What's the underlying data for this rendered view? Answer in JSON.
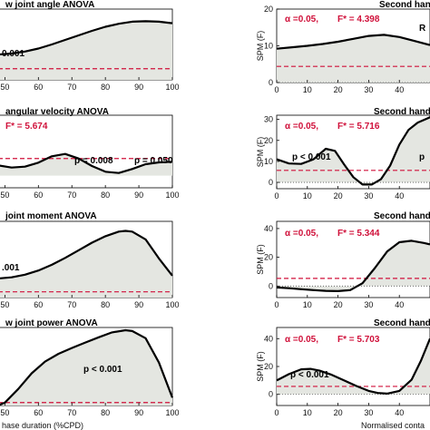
{
  "chart_data": [
    {
      "type": "line",
      "title": "w joint angle ANOVA",
      "x_ticks": [
        "50",
        "60",
        "70",
        "80",
        "90",
        "100"
      ],
      "xlim": [
        48,
        100
      ],
      "ylim": [
        0,
        14
      ],
      "threshold": 2.2,
      "x": [
        48,
        52,
        56,
        60,
        64,
        68,
        72,
        76,
        80,
        84,
        88,
        92,
        96,
        100
      ],
      "y": [
        5.0,
        5.2,
        5.6,
        6.2,
        7.0,
        7.9,
        8.8,
        9.7,
        10.5,
        11.1,
        11.5,
        11.6,
        11.5,
        11.2
      ],
      "annotations": [
        {
          "text": "0.001",
          "x": 50,
          "y": 6.8
        }
      ],
      "alpha_text": "",
      "fstar_text": ""
    },
    {
      "type": "line",
      "title": "angular velocity ANOVA",
      "x_ticks": [
        "50",
        "60",
        "70",
        "80",
        "90",
        "100"
      ],
      "xlim": [
        48,
        100
      ],
      "ylim": [
        -4,
        20
      ],
      "threshold": 5.674,
      "x": [
        48,
        52,
        56,
        60,
        64,
        68,
        72,
        76,
        80,
        84,
        88,
        92,
        96,
        100
      ],
      "y": [
        3.4,
        2.7,
        3.0,
        4.3,
        6.4,
        7.2,
        5.7,
        3.2,
        1.3,
        0.9,
        2.2,
        3.8,
        4.4,
        4.6
      ],
      "annotations": [
        {
          "text": "p = 0.008",
          "x": 68,
          "y": 13
        },
        {
          "text": "p = 0.050",
          "x": 90,
          "y": 13
        }
      ],
      "alpha_text": "",
      "fstar_text": "F* = 5.674"
    },
    {
      "type": "line",
      "title": "joint moment ANOVA",
      "x_ticks": [
        "50",
        "60",
        "70",
        "80",
        "90",
        "100"
      ],
      "xlim": [
        48,
        100
      ],
      "ylim": [
        0,
        40
      ],
      "threshold": 3.0,
      "x": [
        48,
        52,
        56,
        60,
        64,
        68,
        72,
        76,
        80,
        84,
        86,
        88,
        92,
        96,
        100
      ],
      "y": [
        10.0,
        10.6,
        12.0,
        14.2,
        17.2,
        20.8,
        24.8,
        28.8,
        32.2,
        34.6,
        35.0,
        34.6,
        30.5,
        20.5,
        11.5
      ],
      "annotations": [
        {
          "text": ".001",
          "x": 50,
          "y": 14
        }
      ],
      "alpha_text": "",
      "fstar_text": ""
    },
    {
      "type": "line",
      "title": "w joint power ANOVA",
      "x_ticks": [
        "50",
        "60",
        "70",
        "80",
        "90",
        "100"
      ],
      "xlim": [
        48,
        100
      ],
      "ylim": [
        0,
        40
      ],
      "threshold": 1.5,
      "x": [
        48,
        50,
        54,
        58,
        62,
        66,
        70,
        74,
        78,
        82,
        86,
        88,
        92,
        96,
        100
      ],
      "y": [
        0.0,
        1.5,
        8.5,
        16.5,
        22.5,
        26.5,
        29.5,
        32.3,
        35.0,
        37.5,
        38.6,
        38.2,
        34.5,
        22.0,
        4.0
      ],
      "annotations": [
        {
          "text": "p < 0.001",
          "x": 80,
          "y": 15
        }
      ],
      "alpha_text": "",
      "fstar_text": "",
      "xlabel": "hase duration (%CPD)"
    },
    {
      "type": "line",
      "title": "Second hand W",
      "x_ticks": [
        "0",
        "10",
        "20",
        "30",
        "40"
      ],
      "yticks": [
        "0",
        "10",
        "20"
      ],
      "ylabel": "SPM (F)",
      "xlim": [
        0,
        50
      ],
      "ylim": [
        0,
        20
      ],
      "threshold": 4.398,
      "x": [
        0,
        5,
        10,
        15,
        20,
        25,
        30,
        35,
        40,
        45,
        50
      ],
      "y": [
        9.2,
        9.6,
        10.0,
        10.5,
        11.1,
        11.9,
        12.7,
        13.0,
        12.4,
        11.3,
        10.2
      ],
      "annotations": [
        {
          "text": "R",
          "x": 48,
          "y": 16.5
        }
      ],
      "alpha_text": "α =0.05,",
      "fstar_text": "F* = 4.398"
    },
    {
      "type": "line",
      "title": "Second hand Wris",
      "x_ticks": [
        "0",
        "10",
        "20",
        "30",
        "40"
      ],
      "yticks": [
        "0",
        "10",
        "20",
        "30"
      ],
      "ylabel": "SPM (F)",
      "xlim": [
        0,
        50
      ],
      "ylim": [
        -3,
        32
      ],
      "threshold": 5.716,
      "x": [
        0,
        4,
        8,
        12,
        16,
        19,
        22,
        25,
        28,
        31,
        34,
        37,
        40,
        43,
        46,
        50
      ],
      "y": [
        11.0,
        9.0,
        8.8,
        11.0,
        16.0,
        15.0,
        8.5,
        2.5,
        -1.0,
        -1.0,
        1.5,
        8.0,
        18.0,
        25.0,
        28.5,
        31.0
      ],
      "annotations": [
        {
          "text": "p < 0.001",
          "x": 9,
          "y": 23
        },
        {
          "text": "p",
          "x": 47,
          "y": 17
        }
      ],
      "alpha_text": "α =0.05,",
      "fstar_text": "F* = 5.716"
    },
    {
      "type": "line",
      "title": "Second hand Wri",
      "x_ticks": [
        "0",
        "10",
        "20",
        "30",
        "40"
      ],
      "yticks": [
        "0",
        "20",
        "40"
      ],
      "ylabel": "SPM (F)",
      "xlim": [
        0,
        50
      ],
      "ylim": [
        -8,
        45
      ],
      "threshold": 5.344,
      "x": [
        0,
        4,
        8,
        12,
        16,
        20,
        24,
        28,
        32,
        36,
        40,
        44,
        48,
        50
      ],
      "y": [
        -1.0,
        -1.5,
        -2.2,
        -2.8,
        -3.3,
        -3.5,
        -2.8,
        2.0,
        12.5,
        24.0,
        30.5,
        31.5,
        30.0,
        29.0
      ],
      "annotations": [],
      "alpha_text": "α =0.05,",
      "fstar_text": "F* = 5.344"
    },
    {
      "type": "line",
      "title": "Second hand W",
      "x_ticks": [
        "0",
        "10",
        "20",
        "30",
        "40"
      ],
      "yticks": [
        "0",
        "20",
        "40"
      ],
      "ylabel": "SPM (F)",
      "xlim": [
        0,
        50
      ],
      "ylim": [
        -8,
        48
      ],
      "threshold": 5.703,
      "x": [
        0,
        4,
        8,
        11,
        14,
        18,
        22,
        26,
        30,
        33,
        36,
        40,
        44,
        47,
        50
      ],
      "y": [
        10.0,
        14.5,
        18.0,
        18.3,
        17.0,
        14.0,
        10.0,
        6.0,
        2.5,
        1.0,
        0.5,
        2.5,
        10.5,
        24.0,
        40.0
      ],
      "annotations": [
        {
          "text": "p < 0.001",
          "x": 6,
          "y": 27
        }
      ],
      "alpha_text": "α =0.05,",
      "fstar_text": "F* = 5.703",
      "xlabel": "Normalised conta"
    }
  ]
}
